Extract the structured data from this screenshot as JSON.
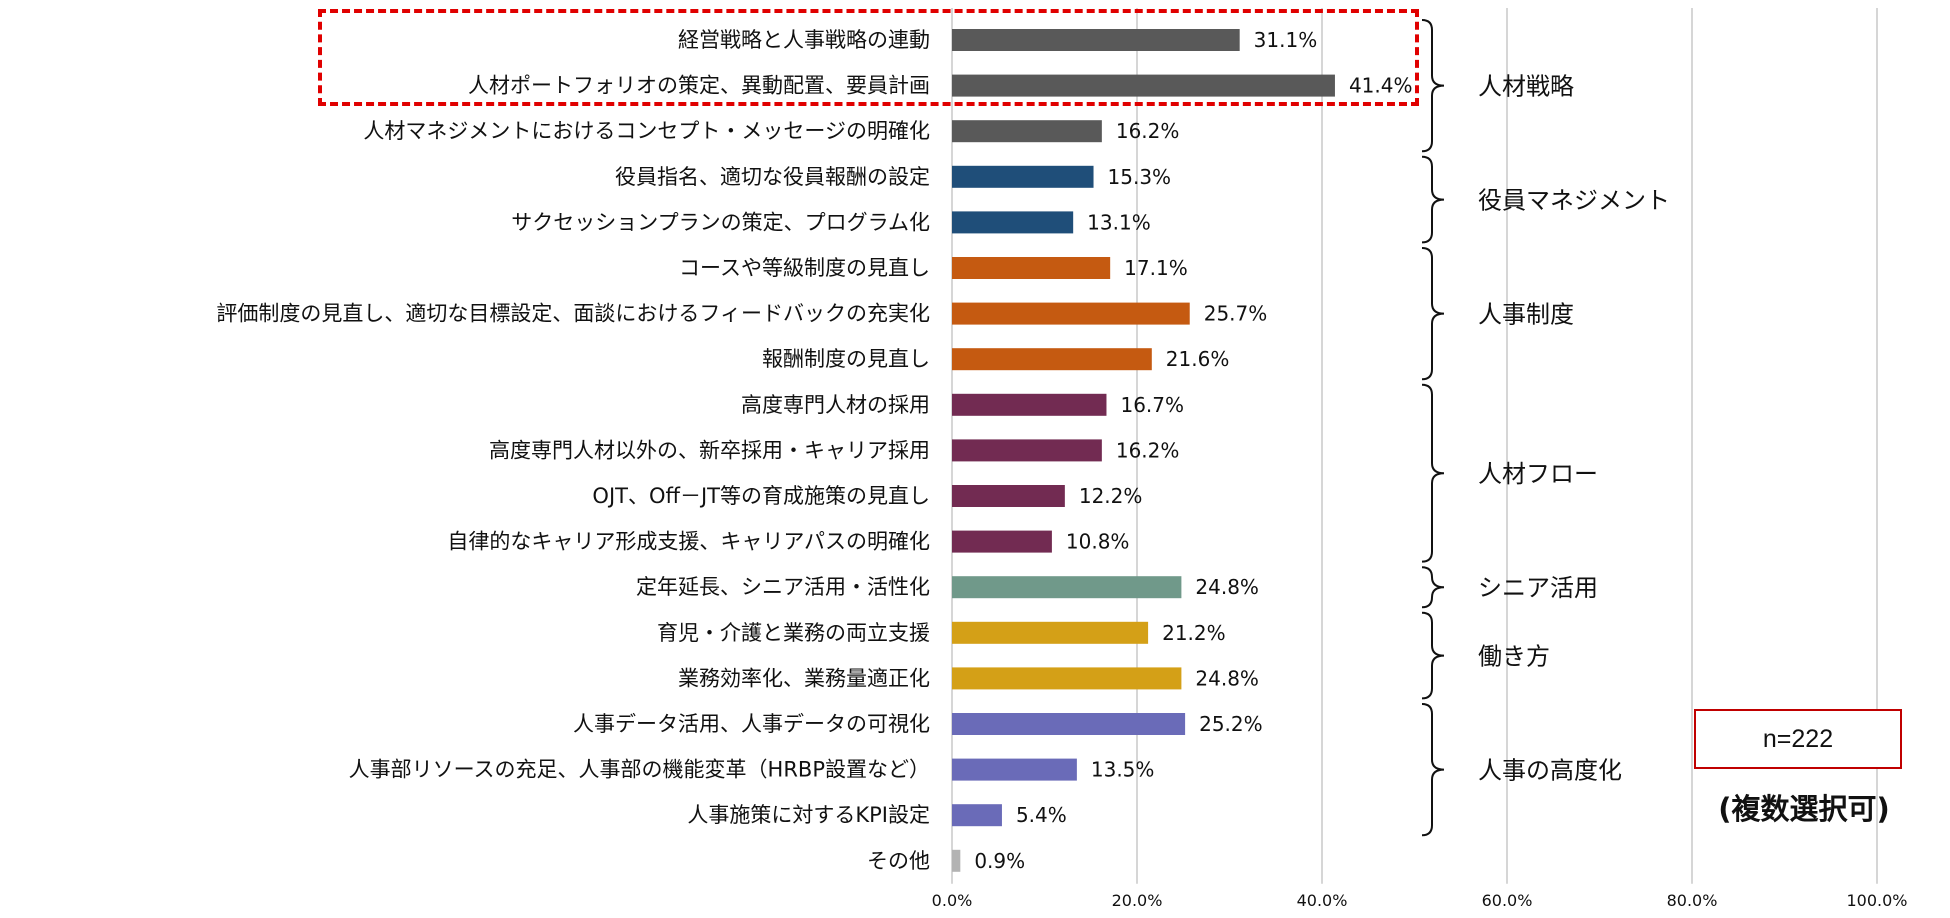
{
  "chart_data": {
    "type": "bar",
    "orientation": "horizontal",
    "categories": [
      "経営戦略と人事戦略の連動",
      "人材ポートフォリオの策定、異動配置、要員計画",
      "人材マネジメントにおけるコンセプト・メッセージの明確化",
      "役員指名、適切な役員報酬の設定",
      "サクセッションプランの策定、プログラム化",
      "コースや等級制度の見直し",
      "評価制度の見直し、適切な目標設定、面談におけるフィードバックの充実化",
      "報酬制度の見直し",
      "高度専門人材の採用",
      "高度専門人材以外の、新卒採用・キャリア採用",
      "OJT、Off－JT等の育成施策の見直し",
      "自律的なキャリア形成支援、キャリアパスの明確化",
      "定年延長、シニア活用・活性化",
      "育児・介護と業務の両立支援",
      "業務効率化、業務量適正化",
      "人事データ活用、人事データの可視化",
      "人事部リソースの充足、人事部の機能変革（HRBP設置など）",
      "人事施策に対するKPI設定",
      "その他"
    ],
    "values": [
      31.1,
      41.4,
      16.2,
      15.3,
      13.1,
      17.1,
      25.7,
      21.6,
      16.7,
      16.2,
      12.2,
      10.8,
      24.8,
      21.2,
      24.8,
      25.2,
      13.5,
      5.4,
      0.9
    ],
    "value_labels": [
      "31.1%",
      "41.4%",
      "16.2%",
      "15.3%",
      "13.1%",
      "17.1%",
      "25.7%",
      "21.6%",
      "16.7%",
      "16.2%",
      "12.2%",
      "10.8%",
      "24.8%",
      "21.2%",
      "24.8%",
      "25.2%",
      "13.5%",
      "5.4%",
      "0.9%"
    ],
    "xlim": [
      0,
      100
    ],
    "x_ticks": [
      "0.0%",
      "20.0%",
      "40.0%",
      "60.0%",
      "80.0%",
      "100.0%"
    ],
    "grid": "vertical",
    "groups": [
      {
        "label": "人材戦略",
        "start": 0,
        "end": 2,
        "color": "#595959"
      },
      {
        "label": "役員マネジメント",
        "start": 3,
        "end": 4,
        "color": "#1f4e79"
      },
      {
        "label": "人事制度",
        "start": 5,
        "end": 7,
        "color": "#c55a11"
      },
      {
        "label": "人材フロー",
        "start": 8,
        "end": 11,
        "color": "#722b52"
      },
      {
        "label": "シニア活用",
        "start": 12,
        "end": 12,
        "color": "#70998a"
      },
      {
        "label": "働き方",
        "start": 13,
        "end": 14,
        "color": "#d4a017"
      },
      {
        "label": "人事の高度化",
        "start": 15,
        "end": 17,
        "color": "#6a6bb8"
      },
      {
        "label": "",
        "start": 18,
        "end": 18,
        "color": "#b3b3b3"
      }
    ],
    "highlighted_categories": [
      0,
      1
    ],
    "highlight_color": "#e00000"
  },
  "annotation": {
    "sample_size": "n=222",
    "note": "(複数選択可)"
  }
}
